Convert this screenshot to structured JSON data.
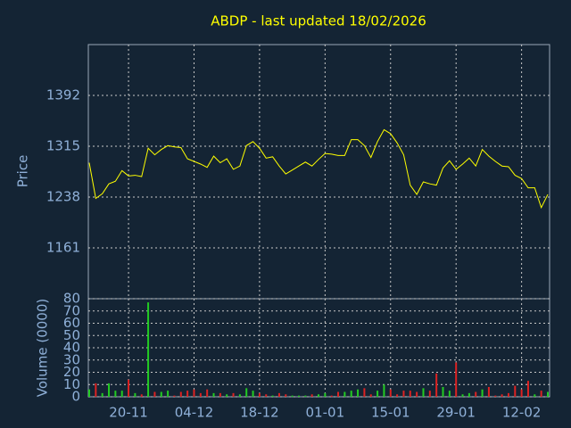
{
  "chart_data": [
    {
      "type": "line",
      "title": "ABDP - last updated 18/02/2026",
      "ylabel": "Price",
      "series": [
        {
          "name": "Price",
          "color": "#ffff00",
          "values": [
            1290,
            1236,
            1243,
            1258,
            1262,
            1278,
            1270,
            1271,
            1269,
            1312,
            1302,
            1310,
            1316,
            1314,
            1313,
            1296,
            1292,
            1288,
            1283,
            1300,
            1290,
            1296,
            1280,
            1285,
            1316,
            1322,
            1312,
            1297,
            1299,
            1285,
            1273,
            1279,
            1285,
            1291,
            1285,
            1295,
            1304,
            1303,
            1301,
            1301,
            1325,
            1325,
            1316,
            1298,
            1322,
            1340,
            1334,
            1320,
            1302,
            1256,
            1242,
            1261,
            1258,
            1256,
            1282,
            1293,
            1280,
            1288,
            1297,
            1285,
            1310,
            1300,
            1292,
            1285,
            1284,
            1271,
            1266,
            1252,
            1252,
            1222,
            1242
          ]
        }
      ],
      "ylim": [
        1084,
        1469
      ],
      "yticks": [
        1161,
        1238,
        1315,
        1392
      ],
      "grid": true
    },
    {
      "type": "bar",
      "ylabel": "Volume (0000)",
      "up_color": "#22cc22",
      "down_color": "#dd2222",
      "categories": [
        null,
        null,
        null,
        null,
        null,
        null,
        "20-11",
        null,
        null,
        null,
        null,
        null,
        null,
        null,
        null,
        null,
        "04-12",
        null,
        null,
        null,
        null,
        null,
        null,
        null,
        null,
        null,
        "18-12",
        null,
        null,
        null,
        null,
        null,
        null,
        null,
        null,
        null,
        "01-01",
        null,
        null,
        null,
        null,
        null,
        null,
        null,
        null,
        null,
        "15-01",
        null,
        null,
        null,
        null,
        null,
        null,
        null,
        null,
        null,
        "29-01",
        null,
        null,
        null,
        null,
        null,
        null,
        null,
        null,
        null,
        "12-02",
        null,
        null,
        null,
        null
      ],
      "values": [
        6,
        11,
        3,
        11,
        5,
        5,
        14,
        3,
        2,
        77,
        4,
        4,
        5,
        1,
        4,
        5,
        6,
        3,
        6,
        3,
        3,
        2,
        3,
        2,
        7,
        5,
        3,
        2,
        1,
        3,
        2,
        1,
        1,
        1,
        2,
        2,
        3,
        1,
        4,
        4,
        5,
        6,
        7,
        2,
        5,
        10,
        6,
        2,
        5,
        5,
        4,
        7,
        5,
        19,
        8,
        5,
        28,
        2,
        3,
        4,
        6,
        8,
        1,
        2,
        3,
        9,
        6,
        13,
        2,
        5,
        4
      ],
      "ylim": [
        0,
        80
      ],
      "yticks": [
        0,
        10,
        20,
        30,
        40,
        50,
        60,
        70,
        80
      ],
      "grid": true
    }
  ]
}
